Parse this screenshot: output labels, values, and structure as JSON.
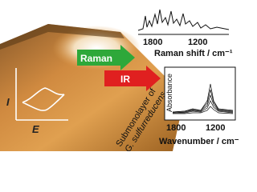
{
  "raman": {
    "arrow_label": "Raman",
    "ticks": [
      "1800",
      "1200"
    ],
    "axis_label": "Raman shift / cm⁻¹"
  },
  "ir": {
    "arrow_label": "IR",
    "y_label": "Absorbance",
    "ticks": [
      "1800",
      "1200"
    ],
    "axis_label": "Wavenumber / cm⁻¹"
  },
  "cv": {
    "x_label": "E",
    "y_label": "I"
  },
  "caption": [
    "Submonolayer of",
    "G. sulfurreducens"
  ]
}
